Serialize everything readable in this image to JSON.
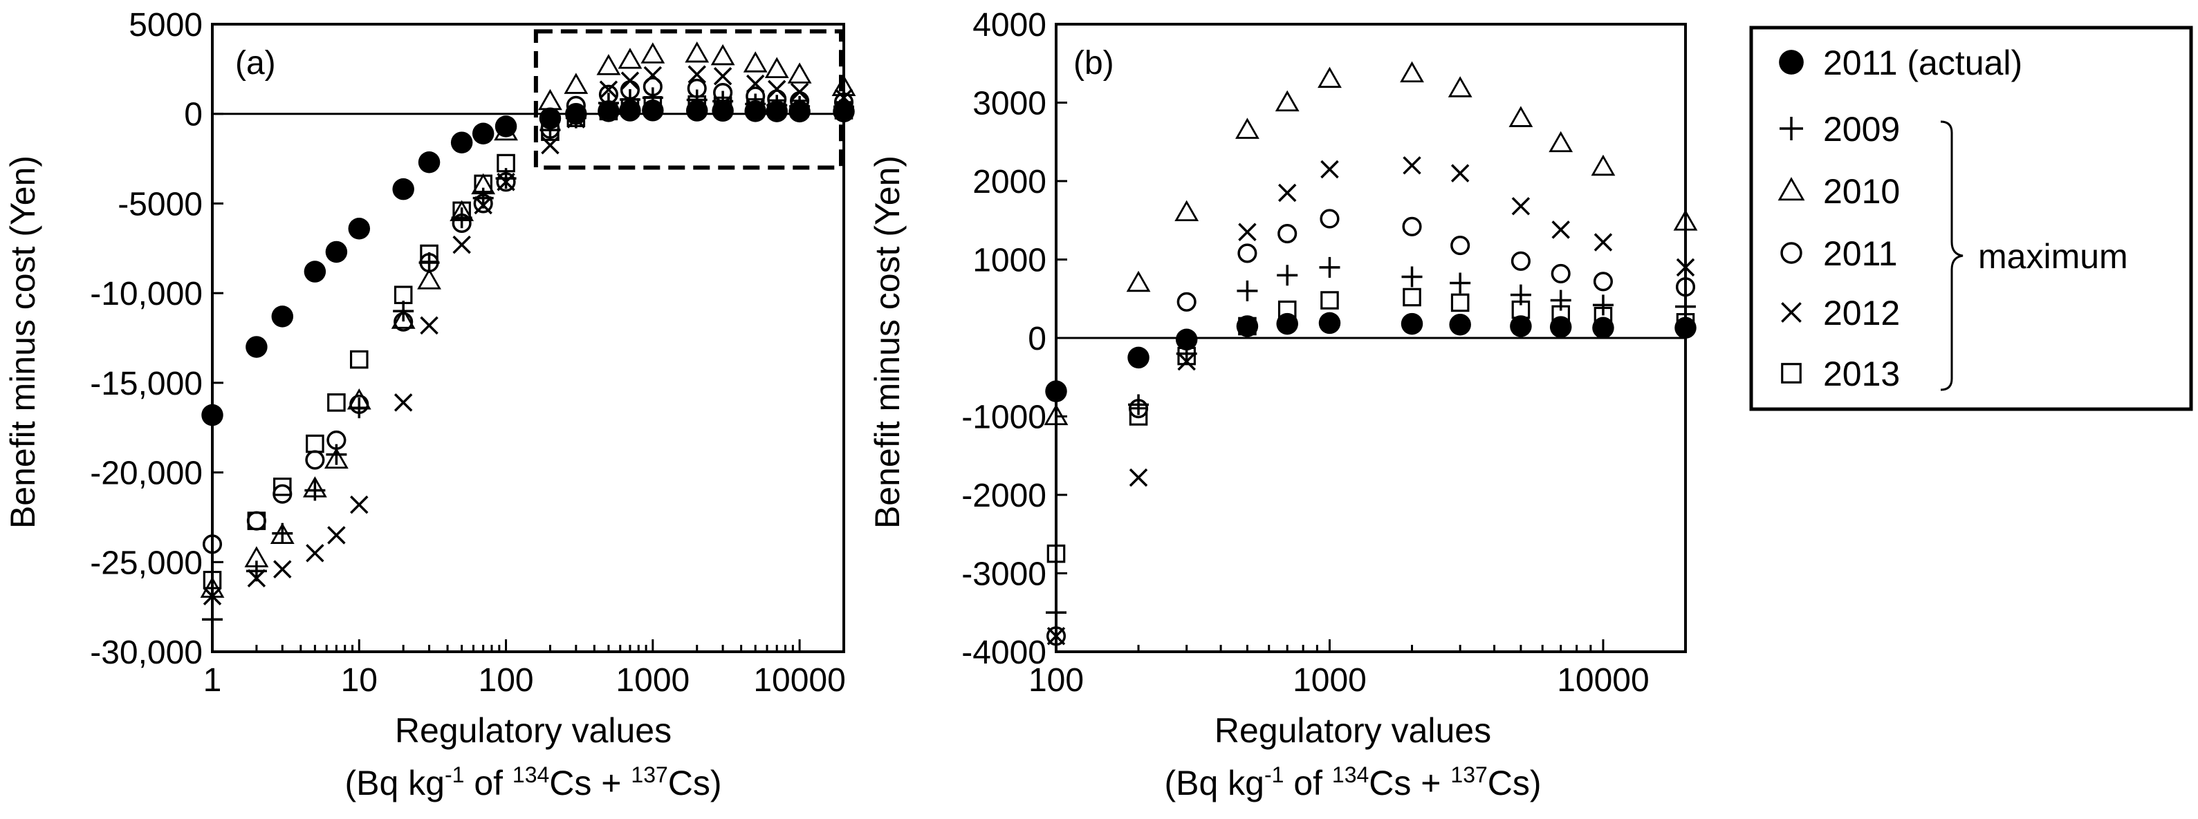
{
  "figure": {
    "legend": {
      "entries": [
        {
          "label": "2011 (actual)",
          "marker": "filled-circle"
        },
        {
          "label": "2009",
          "marker": "plus"
        },
        {
          "label": "2010",
          "marker": "triangle"
        },
        {
          "label": "2011",
          "marker": "circle"
        },
        {
          "label": "2012",
          "marker": "cross"
        },
        {
          "label": "2013",
          "marker": "square"
        }
      ],
      "bracket_label": "maximum"
    }
  },
  "chart_data": [
    {
      "panel": "(a)",
      "type": "scatter",
      "x_scale": "log",
      "xlim": [
        1,
        20000
      ],
      "ylim": [
        -30000,
        5000
      ],
      "xlabel": "Regulatory values",
      "xlabel_line2": {
        "prefix": "(Bq kg",
        "exp1": "-1",
        "mid1": " of ",
        "sup2": "134",
        "mid2": "Cs + ",
        "sup3": "137",
        "suffix": "Cs)"
      },
      "ylabel": "Benefit minus cost (Yen)",
      "x_ticks": [
        {
          "value": 1,
          "label": "1"
        },
        {
          "value": 10,
          "label": "10"
        },
        {
          "value": 100,
          "label": "100"
        },
        {
          "value": 1000,
          "label": "1000"
        },
        {
          "value": 10000,
          "label": "10000"
        }
      ],
      "y_ticks": [
        {
          "value": 5000,
          "label": "5000"
        },
        {
          "value": 0,
          "label": "0"
        },
        {
          "value": -5000,
          "label": "-5000"
        },
        {
          "value": -10000,
          "label": "-10,000"
        },
        {
          "value": -15000,
          "label": "-15,000"
        },
        {
          "value": -20000,
          "label": "-20,000"
        },
        {
          "value": -25000,
          "label": "-25,000"
        },
        {
          "value": -30000,
          "label": "-30,000"
        }
      ],
      "zero_line": true,
      "inset_box": {
        "x": [
          160,
          20000
        ],
        "y": [
          -3000,
          4600
        ],
        "style": "dashed"
      },
      "x": [
        1,
        2,
        3,
        5,
        7,
        10,
        20,
        30,
        50,
        70,
        100,
        200,
        300,
        500,
        700,
        1000,
        2000,
        3000,
        5000,
        7000,
        10000,
        20000
      ],
      "series": [
        {
          "name": "2011 (actual)",
          "marker": "filled-circle",
          "values": [
            -16800,
            -13000,
            -11300,
            -8800,
            -7700,
            -6400,
            -4200,
            -2700,
            -1600,
            -1100,
            -700,
            -250,
            0,
            150,
            180,
            190,
            180,
            170,
            150,
            140,
            130,
            130
          ]
        },
        {
          "name": "2009",
          "marker": "plus",
          "values": [
            -28200,
            -25500,
            -23400,
            -21000,
            -19000,
            -16400,
            -11000,
            -8300,
            -5800,
            -4700,
            -3600,
            -900,
            -230,
            600,
            800,
            900,
            780,
            700,
            550,
            480,
            420,
            400
          ]
        },
        {
          "name": "2010",
          "marker": "triangle",
          "values": [
            -26500,
            -24800,
            -23500,
            -20900,
            -19300,
            -16000,
            -11500,
            -9300,
            -5500,
            -4000,
            -1000,
            700,
            1600,
            2650,
            3000,
            3300,
            3350,
            3200,
            2800,
            2480,
            2180,
            1480
          ]
        },
        {
          "name": "2011",
          "marker": "circle",
          "values": [
            -24000,
            -22700,
            -21200,
            -19300,
            -18200,
            -16200,
            -11600,
            -8300,
            -6100,
            -5000,
            -3800,
            -850,
            460,
            1080,
            1330,
            1520,
            1420,
            1180,
            980,
            820,
            720,
            650
          ]
        },
        {
          "name": "2012",
          "marker": "cross",
          "values": [
            -26900,
            -25900,
            -25400,
            -24500,
            -23500,
            -21800,
            -16100,
            -11800,
            -7300,
            -5100,
            -3800,
            -1750,
            -300,
            1350,
            1850,
            2150,
            2200,
            2100,
            1680,
            1380,
            1220,
            900
          ]
        },
        {
          "name": "2013",
          "marker": "square",
          "values": [
            -26000,
            -22700,
            -20800,
            -18400,
            -16100,
            -13700,
            -10100,
            -7800,
            -5400,
            -3900,
            -2750,
            -1000,
            -230,
            150,
            360,
            480,
            520,
            450,
            360,
            300,
            280,
            200
          ]
        }
      ]
    },
    {
      "panel": "(b)",
      "type": "scatter",
      "x_scale": "log",
      "xlim": [
        100,
        20000
      ],
      "ylim": [
        -4000,
        4000
      ],
      "xlabel": "Regulatory values",
      "xlabel_line2": {
        "prefix": "(Bq kg",
        "exp1": "-1",
        "mid1": " of ",
        "sup2": "134",
        "mid2": "Cs + ",
        "sup3": "137",
        "suffix": "Cs)"
      },
      "ylabel": "Benefit minus cost (Yen)",
      "x_ticks": [
        {
          "value": 100,
          "label": "100"
        },
        {
          "value": 1000,
          "label": "1000"
        },
        {
          "value": 10000,
          "label": "10000"
        }
      ],
      "y_ticks": [
        {
          "value": 4000,
          "label": "4000"
        },
        {
          "value": 3000,
          "label": "3000"
        },
        {
          "value": 2000,
          "label": "2000"
        },
        {
          "value": 1000,
          "label": "1000"
        },
        {
          "value": 0,
          "label": "0"
        },
        {
          "value": -1000,
          "label": "-1000"
        },
        {
          "value": -2000,
          "label": "-2000"
        },
        {
          "value": -3000,
          "label": "-3000"
        },
        {
          "value": -4000,
          "label": "-4000"
        }
      ],
      "zero_line": true,
      "x": [
        100,
        200,
        300,
        500,
        700,
        1000,
        2000,
        3000,
        5000,
        7000,
        10000,
        20000
      ],
      "series": [
        {
          "name": "2011 (actual)",
          "marker": "filled-circle",
          "values": [
            -680,
            -250,
            -20,
            150,
            180,
            190,
            180,
            170,
            150,
            140,
            130,
            130
          ]
        },
        {
          "name": "2009",
          "marker": "plus",
          "values": [
            -3500,
            -850,
            -200,
            600,
            800,
            900,
            780,
            700,
            550,
            480,
            420,
            400
          ]
        },
        {
          "name": "2010",
          "marker": "triangle",
          "values": [
            -1000,
            700,
            1600,
            2650,
            3000,
            3300,
            3370,
            3180,
            2800,
            2480,
            2180,
            1480
          ]
        },
        {
          "name": "2011",
          "marker": "circle",
          "values": [
            -3800,
            -900,
            460,
            1080,
            1330,
            1520,
            1420,
            1180,
            980,
            820,
            720,
            650
          ]
        },
        {
          "name": "2012",
          "marker": "cross",
          "values": [
            -3800,
            -1780,
            -300,
            1350,
            1850,
            2150,
            2200,
            2100,
            1680,
            1380,
            1220,
            900
          ]
        },
        {
          "name": "2013",
          "marker": "square",
          "values": [
            -2750,
            -1000,
            -230,
            150,
            360,
            480,
            520,
            450,
            360,
            300,
            280,
            200
          ]
        }
      ]
    }
  ]
}
